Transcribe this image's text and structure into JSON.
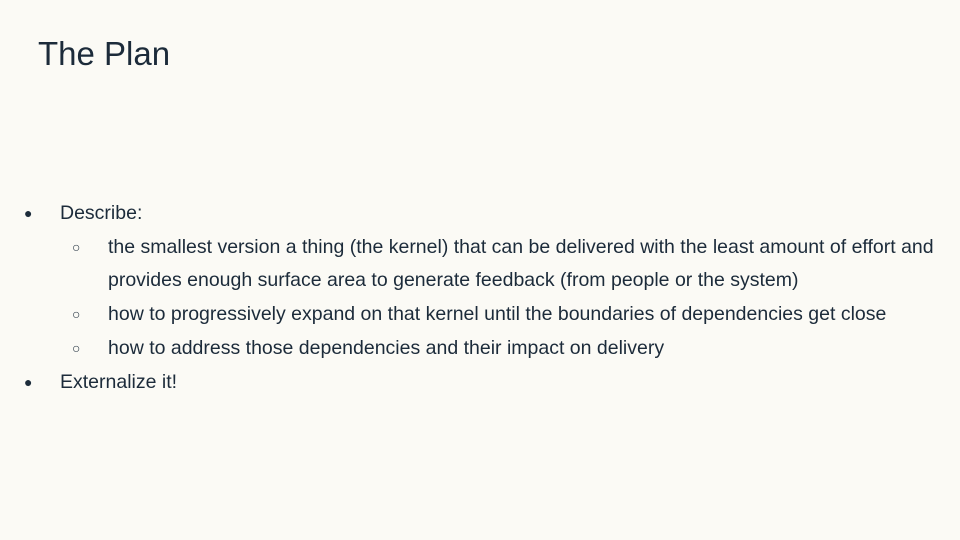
{
  "slide": {
    "title": "The Plan",
    "bullets": [
      {
        "marker": "●",
        "text": "Describe:"
      },
      {
        "marker": "○",
        "text": "the smallest version a thing (the kernel) that can be delivered with the least amount of effort and provides enough surface area to generate feedback (from people or the system)"
      },
      {
        "marker": "○",
        "text": "how to progressively expand on that kernel until the boundaries of dependencies get close"
      },
      {
        "marker": "○",
        "text": "how to address those dependencies and their impact on delivery"
      },
      {
        "marker": "●",
        "text": "Externalize it!"
      }
    ]
  }
}
